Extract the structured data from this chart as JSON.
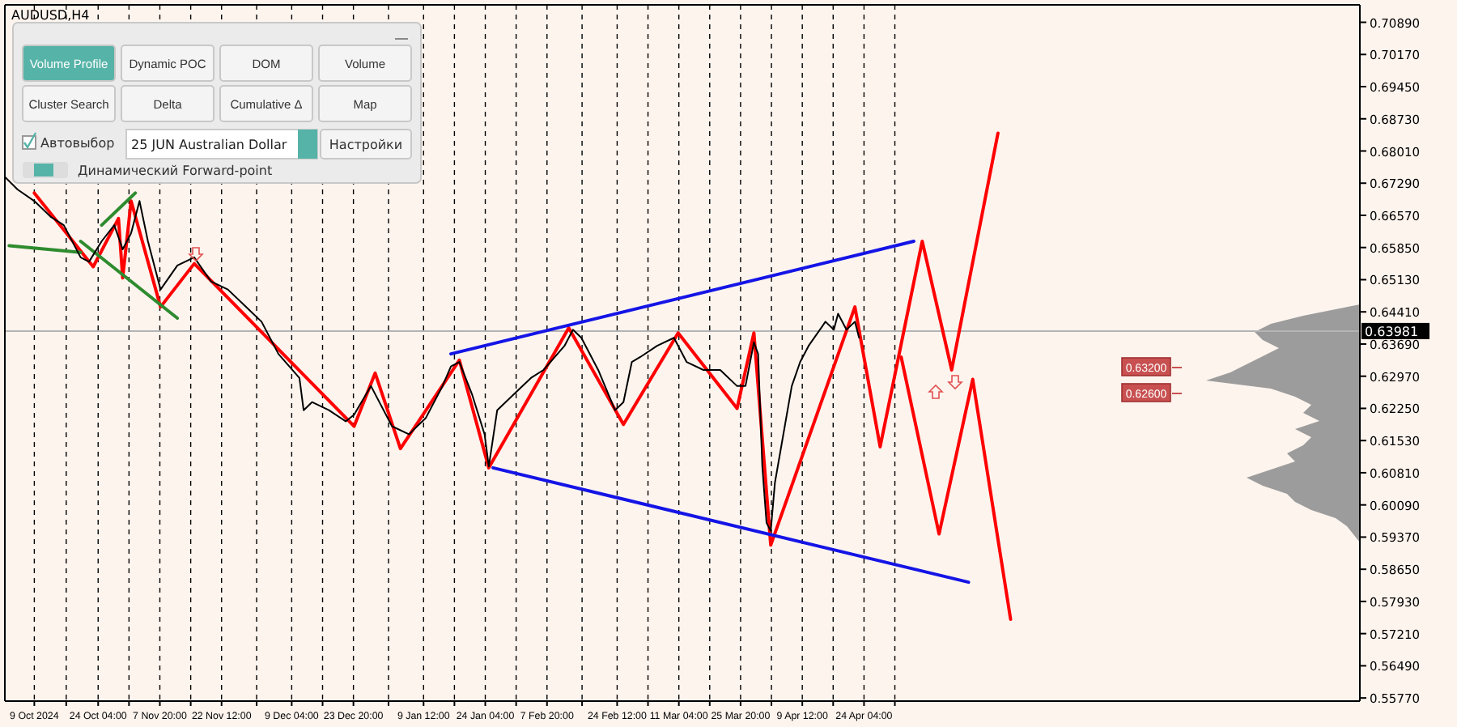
{
  "chart_data": {
    "type": "line",
    "title": "AUDUSD,H4",
    "xlim": [
      "2024-10-02",
      "2025-08-20"
    ],
    "xticks": [
      {
        "value": "2024-10-09",
        "label": "9 Oct 2024"
      },
      {
        "value": "2024-10-16T14:00",
        "label": null
      },
      {
        "value": "2024-10-24T04:00",
        "label": "24 Oct 04:00"
      },
      {
        "value": "2024-10-31T12:00",
        "label": null
      },
      {
        "value": "2024-11-07T20:00",
        "label": "7 Nov 20:00"
      },
      {
        "value": "2024-11-15T04:00",
        "label": null
      },
      {
        "value": "2024-11-22T12:00",
        "label": "22 Nov 12:00"
      },
      {
        "value": "2024-11-30T20:00",
        "label": null
      },
      {
        "value": "2024-12-09T04:00",
        "label": "9 Dec 04:00"
      },
      {
        "value": "2024-12-16T12:00",
        "label": null
      },
      {
        "value": "2024-12-23T20:00",
        "label": "23 Dec 20:00"
      },
      {
        "value": "2025-01-01T04:00",
        "label": null
      },
      {
        "value": "2025-01-09T12:00",
        "label": "9 Jan 12:00"
      },
      {
        "value": "2025-01-16T20:00",
        "label": null
      },
      {
        "value": "2025-01-24T04:00",
        "label": "24 Jan 04:00"
      },
      {
        "value": "2025-01-31T12:00",
        "label": null
      },
      {
        "value": "2025-02-07T20:00",
        "label": "7 Feb 20:00"
      },
      {
        "value": "2025-02-16T04:00",
        "label": null
      },
      {
        "value": "2025-02-24T12:00",
        "label": "24 Feb 12:00"
      },
      {
        "value": "2025-03-03T20:00",
        "label": null
      },
      {
        "value": "2025-03-11T04:00",
        "label": "11 Mar 04:00"
      },
      {
        "value": "2025-03-18T12:00",
        "label": null
      },
      {
        "value": "2025-03-25T20:00",
        "label": "25 Mar 20:00"
      },
      {
        "value": "2025-04-02T04:00",
        "label": null
      },
      {
        "value": "2025-04-09T12:00",
        "label": "9 Apr 12:00"
      },
      {
        "value": "2025-04-16T20:00",
        "label": null
      },
      {
        "value": "2025-04-24T04:00",
        "label": "24 Apr 04:00"
      },
      {
        "value": "2025-05-01T12:00",
        "label": null
      }
    ],
    "ylim": [
      0.557,
      0.7128
    ],
    "yticks": [
      {
        "value": 0.7089,
        "label": "0.70890"
      },
      {
        "value": 0.7017,
        "label": "0.70170"
      },
      {
        "value": 0.6945,
        "label": "0.69450"
      },
      {
        "value": 0.6873,
        "label": "0.68730"
      },
      {
        "value": 0.6801,
        "label": "0.68010"
      },
      {
        "value": 0.6729,
        "label": "0.67290"
      },
      {
        "value": 0.6657,
        "label": "0.66570"
      },
      {
        "value": 0.6585,
        "label": "0.65850"
      },
      {
        "value": 0.6513,
        "label": "0.65130"
      },
      {
        "value": 0.6441,
        "label": "0.64410"
      },
      {
        "value": 0.6369,
        "label": "0.63690"
      },
      {
        "value": 0.6297,
        "label": "0.62970"
      },
      {
        "value": 0.6225,
        "label": "0.62250"
      },
      {
        "value": 0.6153,
        "label": "0.61530"
      },
      {
        "value": 0.6081,
        "label": "0.60810"
      },
      {
        "value": 0.6009,
        "label": "0.60090"
      },
      {
        "value": 0.5937,
        "label": "0.59370"
      },
      {
        "value": 0.5865,
        "label": "0.58650"
      },
      {
        "value": 0.5793,
        "label": "0.57930"
      },
      {
        "value": 0.5721,
        "label": "0.57210"
      },
      {
        "value": 0.5649,
        "label": "0.56490"
      },
      {
        "value": 0.5577,
        "label": "0.55770"
      }
    ],
    "grid": "x",
    "marker": "none",
    "series": [
      {
        "type": "line",
        "color": "#000000",
        "x": [
          "2024-10-02",
          "2024-10-05",
          "2024-10-09",
          "2024-10-13",
          "2024-10-16",
          "2024-10-20",
          "2024-10-22",
          "2024-10-25",
          "2024-10-28",
          "2024-10-30",
          "2024-11-01",
          "2024-11-03",
          "2024-11-05",
          "2024-11-08",
          "2024-11-12",
          "2024-11-16",
          "2024-11-20",
          "2024-11-24",
          "2024-11-28",
          "2024-12-02",
          "2024-12-06",
          "2024-12-11",
          "2024-12-12",
          "2024-12-14",
          "2024-12-18",
          "2024-12-22",
          "2024-12-24",
          "2024-12-28",
          "2025-01-02",
          "2025-01-06",
          "2025-01-10",
          "2025-01-14",
          "2025-01-16",
          "2025-01-18",
          "2025-01-21",
          "2025-01-24",
          "2025-01-25",
          "2025-01-27",
          "2025-01-31",
          "2025-02-04",
          "2025-02-07",
          "2025-02-12",
          "2025-02-14",
          "2025-02-16",
          "2025-02-20",
          "2025-02-24",
          "2025-02-26",
          "2025-02-28",
          "2025-03-02",
          "2025-03-06",
          "2025-03-10",
          "2025-03-13",
          "2025-03-17",
          "2025-03-21",
          "2025-03-25",
          "2025-03-27",
          "2025-03-29",
          "2025-03-30",
          "2025-03-31",
          "2025-04-01",
          "2025-04-02",
          "2025-04-03",
          "2025-04-05",
          "2025-04-07",
          "2025-04-09",
          "2025-04-11",
          "2025-04-15",
          "2025-04-17",
          "2025-04-18",
          "2025-04-20",
          "2025-04-22",
          "2025-04-23"
        ],
        "values": [
          0.6743,
          0.6715,
          0.6689,
          0.6653,
          0.6635,
          0.6563,
          0.6553,
          0.6599,
          0.6635,
          0.6581,
          0.6617,
          0.6689,
          0.6599,
          0.6491,
          0.6545,
          0.6563,
          0.6509,
          0.6491,
          0.6455,
          0.6419,
          0.6347,
          0.6293,
          0.6221,
          0.6239,
          0.6221,
          0.6196,
          0.6211,
          0.6275,
          0.6185,
          0.6167,
          0.6203,
          0.6275,
          0.6319,
          0.6329,
          0.6257,
          0.6167,
          0.6095,
          0.6221,
          0.6257,
          0.6293,
          0.6311,
          0.6365,
          0.6401,
          0.6383,
          0.6311,
          0.6221,
          0.6239,
          0.6329,
          0.634,
          0.6365,
          0.6383,
          0.6329,
          0.6311,
          0.6311,
          0.6275,
          0.6275,
          0.6373,
          0.6347,
          0.6095,
          0.5969,
          0.5951,
          0.6059,
          0.6167,
          0.6275,
          0.6329,
          0.6365,
          0.6419,
          0.6401,
          0.6437,
          0.6401,
          0.6419,
          0.6383
        ]
      },
      {
        "type": "line",
        "color": "#ff0000",
        "x": [
          "2024-10-09",
          "2024-10-23",
          "2024-10-29",
          "2024-10-30",
          "2024-11-01",
          "2024-11-08",
          "2024-11-16",
          "2024-12-24",
          "2024-12-29",
          "2025-01-04",
          "2025-01-18",
          "2025-01-25",
          "2025-02-13",
          "2025-02-26",
          "2025-03-11",
          "2025-03-25",
          "2025-03-29",
          "2025-04-02",
          "2025-04-22",
          "2025-04-28",
          "2025-05-08",
          "2025-05-15",
          "2025-05-26"
        ],
        "values": [
          0.6707,
          0.6542,
          0.665,
          0.6517,
          0.6689,
          0.6452,
          0.6549,
          0.6185,
          0.6304,
          0.6135,
          0.6333,
          0.6092,
          0.6405,
          0.6189,
          0.6394,
          0.6225,
          0.6394,
          0.5919,
          0.6452,
          0.6139,
          0.6599,
          0.6311,
          0.6841
        ]
      },
      {
        "type": "line",
        "color": "#ff0000",
        "x": [
          "2025-05-03",
          "2025-05-12",
          "2025-05-20",
          "2025-05-29"
        ],
        "values": [
          0.634,
          0.5944,
          0.629,
          0.5753
        ]
      },
      {
        "type": "line",
        "color": "#1414e6",
        "x": [
          "2025-01-16",
          "2025-05-06"
        ],
        "values": [
          0.6347,
          0.6599
        ]
      },
      {
        "type": "line",
        "color": "#1414e6",
        "x": [
          "2025-01-26",
          "2025-05-19"
        ],
        "values": [
          0.6092,
          0.5836
        ]
      },
      {
        "type": "line",
        "color": "#2e8b2e",
        "x": [
          "2024-10-03",
          "2024-10-20"
        ],
        "values": [
          0.6589,
          0.6574
        ]
      },
      {
        "type": "line",
        "color": "#2e8b2e",
        "x": [
          "2024-10-20",
          "2024-11-12"
        ],
        "values": [
          0.6599,
          0.6427
        ]
      },
      {
        "type": "line",
        "color": "#2e8b2e",
        "x": [
          "2024-10-25",
          "2024-11-02"
        ],
        "values": [
          0.6635,
          0.6707
        ]
      }
    ],
    "ref_lines": [
      {
        "axis": "y",
        "value": 0.63981,
        "label": "0.63981",
        "color": "#b4b4b4"
      }
    ],
    "annotations": [
      "Volume Profile",
      "Dynamic POC",
      "DOM",
      "Volume",
      "Cluster Search",
      "Delta",
      "Cumulative Δ",
      "Map",
      "Автовыбор",
      "25 JUN Australian Dollar",
      "Настройки",
      "Динамический Forward-point",
      "0.63200",
      "0.62600"
    ]
  }
}
